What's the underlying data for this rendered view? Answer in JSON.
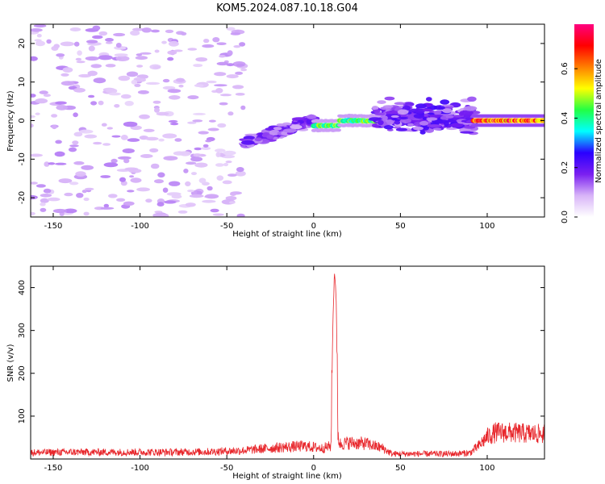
{
  "figure": {
    "title": "KOM5.2024.087.10.18.G04"
  },
  "chart_data": [
    {
      "type": "heatmap",
      "title": "KOM5.2024.087.10.18.G04",
      "xlabel": "Height of straight line (km)",
      "ylabel": "Frequency (Hz)",
      "xlim": [
        -163,
        133
      ],
      "ylim": [
        -25,
        25
      ],
      "x_ticks": [
        -150,
        -100,
        -50,
        0,
        50,
        100
      ],
      "y_ticks": [
        -20,
        -10,
        0,
        10,
        20
      ],
      "colorbar": {
        "label": "Normalized spectral amplitude",
        "range": [
          0.0,
          0.78
        ],
        "ticks": [
          0.0,
          0.2,
          0.4,
          0.6
        ],
        "colors": [
          "#ffffff",
          "#d8b4f8",
          "#7a1ff0",
          "#2a00ff",
          "#00ffff",
          "#22ff44",
          "#ffff00",
          "#ff7f00",
          "#ff0000",
          "#ff0080"
        ]
      },
      "features": [
        {
          "name": "scattered noise",
          "x_range": [
            -163,
            -40
          ],
          "freq_range": [
            -25,
            25
          ],
          "amplitude": 0.08
        },
        {
          "name": "tremor band",
          "x_range": [
            -40,
            0
          ],
          "freq_range": [
            -9,
            1
          ],
          "amplitude": 0.14
        },
        {
          "name": "main signal",
          "x_range": [
            0,
            40
          ],
          "freq_center": 0,
          "amplitude": 0.4
        },
        {
          "name": "broad scatter",
          "x_range": [
            35,
            92
          ],
          "freq_range": [
            -8,
            10
          ],
          "amplitude": 0.16
        },
        {
          "name": "continuous line",
          "x_range": [
            92,
            133
          ],
          "freq_center": 0,
          "amplitude": 0.6
        }
      ],
      "grid": false
    },
    {
      "type": "line",
      "xlabel": "Height of straight line (km)",
      "ylabel": "SNR (v/v)",
      "xlim": [
        -163,
        133
      ],
      "ylim": [
        0,
        450
      ],
      "x_ticks": [
        -150,
        -100,
        -50,
        0,
        50,
        100
      ],
      "y_ticks": [
        100,
        200,
        300,
        400
      ],
      "color": "#e8262b",
      "series": [
        {
          "x": [
            -163,
            -140,
            -120,
            -100,
            -80,
            -60,
            -40,
            -20,
            -5,
            5,
            10,
            11,
            12,
            13,
            14,
            15,
            20,
            30,
            40,
            45,
            50,
            60,
            70,
            80,
            90,
            95,
            100,
            105,
            110,
            120,
            133
          ],
          "values": [
            15,
            16,
            16,
            16,
            16,
            17,
            20,
            27,
            30,
            25,
            30,
            300,
            440,
            380,
            60,
            35,
            38,
            36,
            25,
            12,
            12,
            12,
            12,
            12,
            14,
            30,
            52,
            62,
            62,
            60,
            58
          ]
        }
      ],
      "grid": false
    }
  ]
}
